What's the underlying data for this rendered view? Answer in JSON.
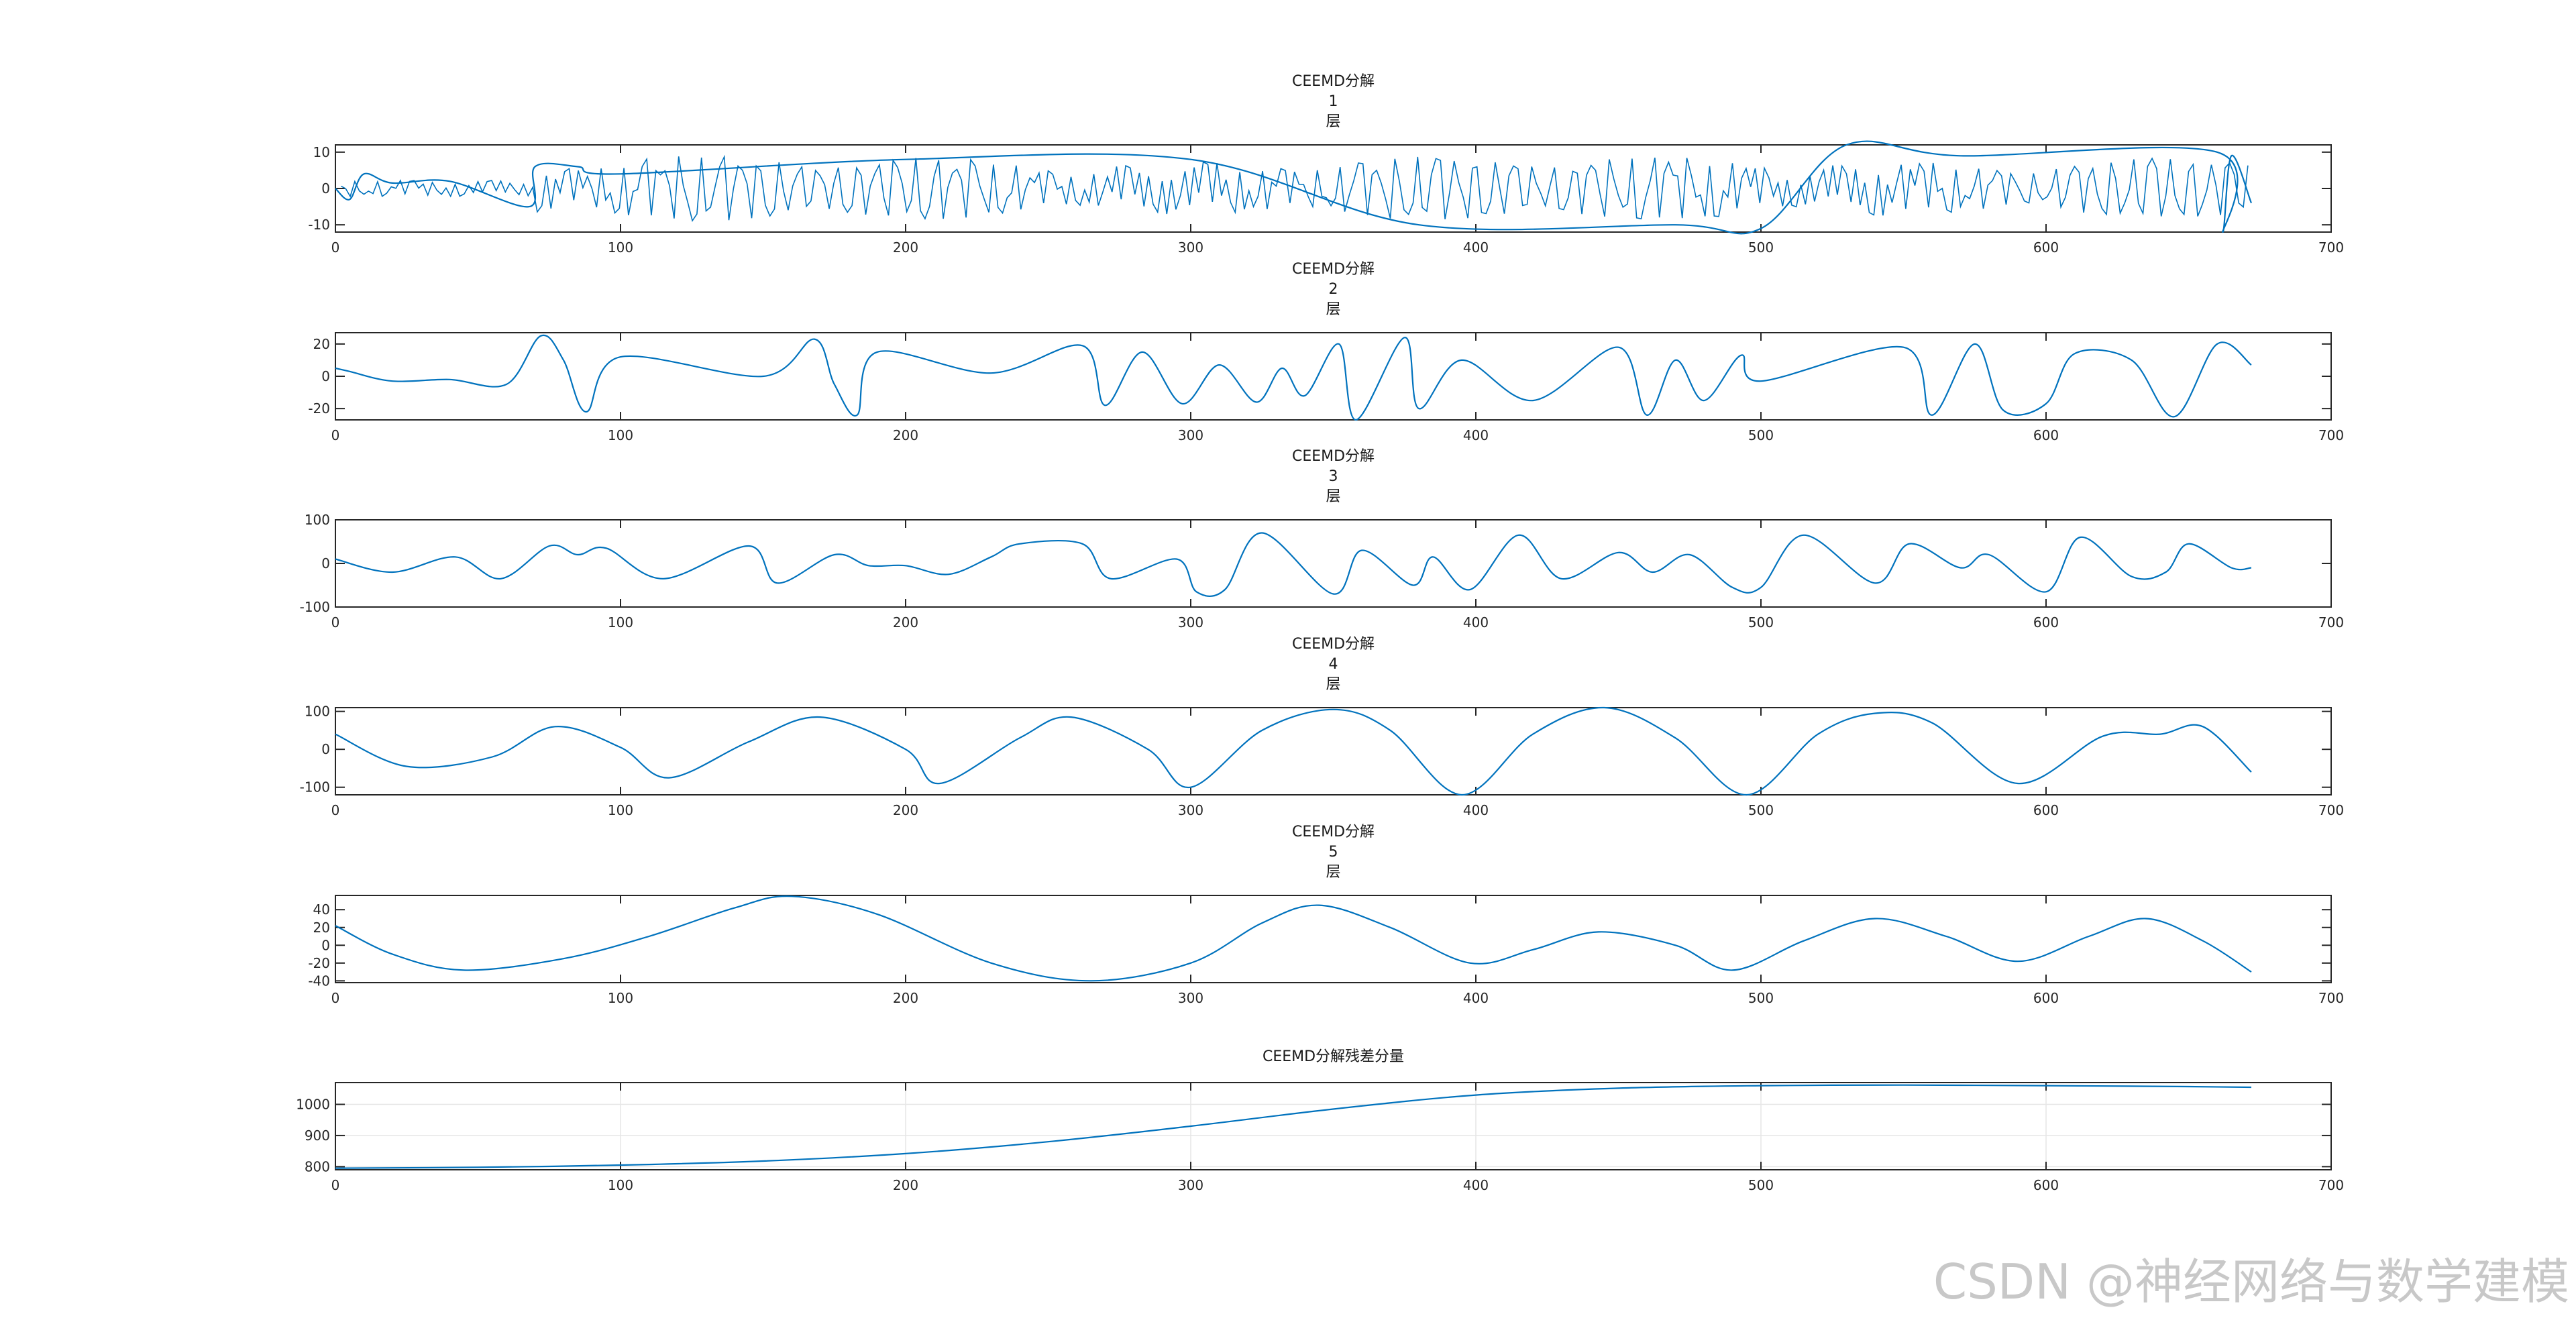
{
  "watermark": "CSDN @神经网络与数学建模",
  "series_color": "#0072BD",
  "chart_data": [
    {
      "type": "line",
      "title": [
        "CEEMD分解",
        "1",
        "层"
      ],
      "xlim": [
        0,
        700
      ],
      "xticks": [
        0,
        100,
        200,
        300,
        400,
        500,
        600,
        700
      ],
      "ylim": [
        -12,
        12
      ],
      "yticks": [
        10,
        0,
        -10
      ],
      "grid": false,
      "x_range": [
        0,
        672
      ],
      "description_points": "high-frequency oscillation, amplitude grows from ~2 (x<70) to ~7-11 (x>80)",
      "x": [
        0,
        5,
        10,
        20,
        40,
        68,
        70,
        85,
        100,
        200,
        300,
        380,
        470,
        500,
        530,
        570,
        660,
        662,
        665,
        672
      ],
      "y": [
        0,
        -3,
        4,
        1.5,
        2,
        -5,
        6,
        6,
        4,
        8,
        8,
        -10,
        -10,
        -11,
        12,
        9,
        10,
        -12,
        9,
        -4
      ]
    },
    {
      "type": "line",
      "title": [
        "CEEMD分解",
        "2",
        "层"
      ],
      "xlim": [
        0,
        700
      ],
      "xticks": [
        0,
        100,
        200,
        300,
        400,
        500,
        600,
        700
      ],
      "ylim": [
        -27,
        27
      ],
      "yticks": [
        20,
        0,
        -20
      ],
      "grid": false,
      "x": [
        0,
        5,
        20,
        40,
        60,
        72,
        80,
        88,
        100,
        150,
        168,
        175,
        183,
        190,
        230,
        262,
        270,
        283,
        297,
        310,
        323,
        332,
        340,
        352,
        358,
        375,
        380,
        395,
        420,
        450,
        460,
        470,
        480,
        493,
        500,
        550,
        560,
        575,
        585,
        600,
        610,
        630,
        645,
        660,
        672
      ],
      "y": [
        5,
        3,
        -3,
        -2,
        -5,
        25,
        10,
        -22,
        12,
        0,
        23,
        -5,
        -24,
        15,
        2,
        19,
        -18,
        15,
        -17,
        7,
        -16,
        5,
        -12,
        20,
        -27,
        24,
        -20,
        10,
        -15,
        18,
        -24,
        10,
        -15,
        13,
        -3,
        18,
        -24,
        20,
        -21,
        -17,
        14,
        10,
        -25,
        20,
        7
      ]
    },
    {
      "type": "line",
      "title": [
        "CEEMD分解",
        "3",
        "层"
      ],
      "xlim": [
        0,
        700
      ],
      "xticks": [
        0,
        100,
        200,
        300,
        400,
        500,
        600,
        700
      ],
      "ylim": [
        -100,
        100
      ],
      "yticks": [
        100,
        0,
        -100
      ],
      "grid": false,
      "x": [
        0,
        20,
        42,
        58,
        75,
        85,
        95,
        115,
        145,
        155,
        175,
        187,
        200,
        215,
        230,
        240,
        262,
        272,
        295,
        302,
        312,
        325,
        350,
        360,
        378,
        385,
        398,
        415,
        430,
        450,
        462,
        475,
        490,
        500,
        515,
        540,
        552,
        570,
        580,
        600,
        612,
        630,
        642,
        650,
        665,
        672
      ],
      "y": [
        10,
        -20,
        15,
        -35,
        40,
        20,
        35,
        -35,
        40,
        -45,
        20,
        -5,
        -5,
        -25,
        15,
        45,
        45,
        -35,
        10,
        -65,
        -60,
        70,
        -70,
        30,
        -50,
        15,
        -60,
        65,
        -35,
        25,
        -20,
        20,
        -55,
        -55,
        65,
        -45,
        45,
        -10,
        20,
        -65,
        60,
        -30,
        -20,
        45,
        -10,
        -10
      ]
    },
    {
      "type": "line",
      "title": [
        "CEEMD分解",
        "4",
        "层"
      ],
      "xlim": [
        0,
        700
      ],
      "xticks": [
        0,
        100,
        200,
        300,
        400,
        500,
        600,
        700
      ],
      "ylim": [
        -120,
        110
      ],
      "yticks": [
        100,
        0,
        -100
      ],
      "grid": false,
      "x": [
        0,
        25,
        55,
        77,
        100,
        117,
        145,
        170,
        200,
        212,
        240,
        258,
        285,
        300,
        325,
        350,
        370,
        395,
        420,
        445,
        470,
        495,
        520,
        540,
        560,
        590,
        620,
        640,
        655,
        672
      ],
      "y": [
        40,
        -45,
        -20,
        60,
        5,
        -75,
        20,
        85,
        0,
        -90,
        30,
        85,
        0,
        -100,
        50,
        105,
        50,
        -120,
        40,
        110,
        30,
        -120,
        40,
        95,
        70,
        -90,
        35,
        40,
        60,
        -60
      ]
    },
    {
      "type": "line",
      "title": [
        "CEEMD分解",
        "5",
        "层"
      ],
      "xlim": [
        0,
        700
      ],
      "xticks": [
        0,
        100,
        200,
        300,
        400,
        500,
        600,
        700
      ],
      "ylim": [
        -42,
        56
      ],
      "yticks": [
        40,
        20,
        0,
        -20,
        -40
      ],
      "grid": false,
      "x": [
        0,
        20,
        45,
        80,
        110,
        140,
        160,
        190,
        230,
        265,
        300,
        325,
        345,
        370,
        398,
        420,
        443,
        470,
        490,
        515,
        540,
        565,
        590,
        615,
        635,
        655,
        672
      ],
      "y": [
        22,
        -10,
        -28,
        -15,
        10,
        42,
        55,
        35,
        -20,
        -40,
        -20,
        25,
        45,
        20,
        -20,
        -5,
        15,
        0,
        -28,
        5,
        30,
        10,
        -18,
        10,
        30,
        5,
        -30
      ]
    },
    {
      "type": "line",
      "title": [
        "CEEMD分解残差分量"
      ],
      "xlim": [
        0,
        700
      ],
      "xticks": [
        0,
        100,
        200,
        300,
        400,
        500,
        600,
        700
      ],
      "ylim": [
        790,
        1070
      ],
      "yticks": [
        1000,
        900,
        800
      ],
      "grid": true,
      "x": [
        0,
        50,
        100,
        150,
        200,
        250,
        300,
        350,
        400,
        450,
        500,
        550,
        600,
        650,
        672
      ],
      "y": [
        795,
        798,
        805,
        818,
        842,
        880,
        930,
        985,
        1030,
        1052,
        1060,
        1062,
        1060,
        1057,
        1055
      ]
    }
  ]
}
